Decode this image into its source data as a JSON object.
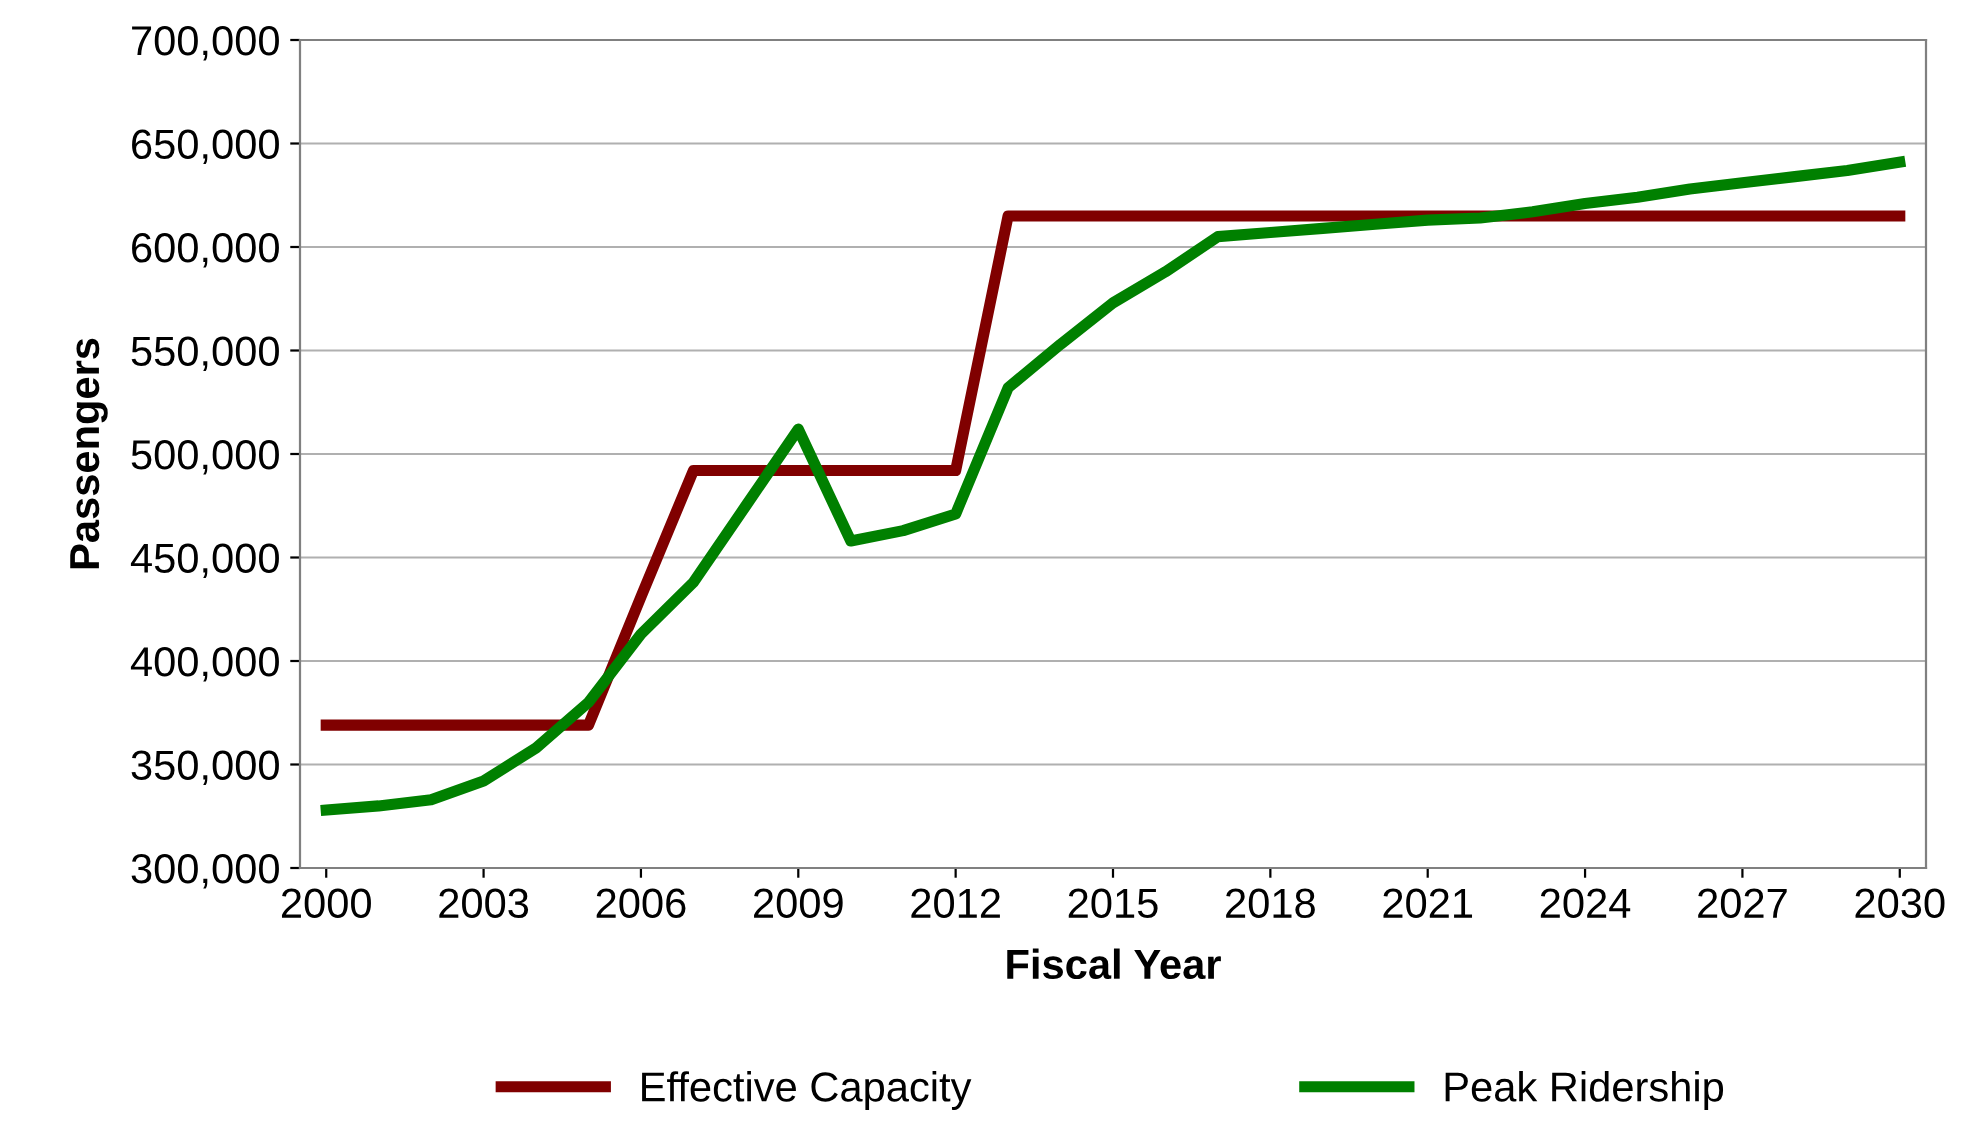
{
  "chart_data": {
    "type": "line",
    "xlabel": "Fiscal Year",
    "ylabel": "Passengers",
    "x": [
      2000,
      2001,
      2002,
      2003,
      2004,
      2005,
      2006,
      2007,
      2008,
      2009,
      2010,
      2011,
      2012,
      2013,
      2014,
      2015,
      2016,
      2017,
      2018,
      2019,
      2020,
      2021,
      2022,
      2023,
      2024,
      2025,
      2026,
      2027,
      2028,
      2029,
      2030
    ],
    "series": [
      {
        "name": "Effective Capacity",
        "color": "#800000",
        "values": [
          369000,
          369000,
          369000,
          369000,
          369000,
          369000,
          431000,
          492000,
          492000,
          492000,
          492000,
          492000,
          492000,
          615000,
          615000,
          615000,
          615000,
          615000,
          615000,
          615000,
          615000,
          615000,
          615000,
          615000,
          615000,
          615000,
          615000,
          615000,
          615000,
          615000,
          615000
        ]
      },
      {
        "name": "Peak Ridership",
        "color": "#008000",
        "values": [
          328000,
          330000,
          333000,
          342000,
          358000,
          380000,
          413000,
          438000,
          475000,
          512000,
          458000,
          463000,
          471000,
          532000,
          553000,
          573000,
          588000,
          605000,
          607000,
          609000,
          611000,
          613000,
          614000,
          617000,
          621000,
          624000,
          628000,
          631000,
          634000,
          637000,
          641000
        ]
      }
    ],
    "xlim": [
      1999.5,
      2030.5
    ],
    "xticks": [
      2000,
      2003,
      2006,
      2009,
      2012,
      2015,
      2018,
      2021,
      2024,
      2027,
      2030
    ],
    "ylim": [
      300000,
      700000
    ],
    "yticks": [
      {
        "value": 300000,
        "label": "300,000"
      },
      {
        "value": 350000,
        "label": "350,000"
      },
      {
        "value": 400000,
        "label": "400,000"
      },
      {
        "value": 450000,
        "label": "450,000"
      },
      {
        "value": 500000,
        "label": "500,000"
      },
      {
        "value": 550000,
        "label": "550,000"
      },
      {
        "value": 600000,
        "label": "600,000"
      },
      {
        "value": 650000,
        "label": "650,000"
      },
      {
        "value": 700000,
        "label": "700,000"
      }
    ],
    "grid": "y",
    "legend": "bottom",
    "marker": "none",
    "line_style": "solid"
  }
}
